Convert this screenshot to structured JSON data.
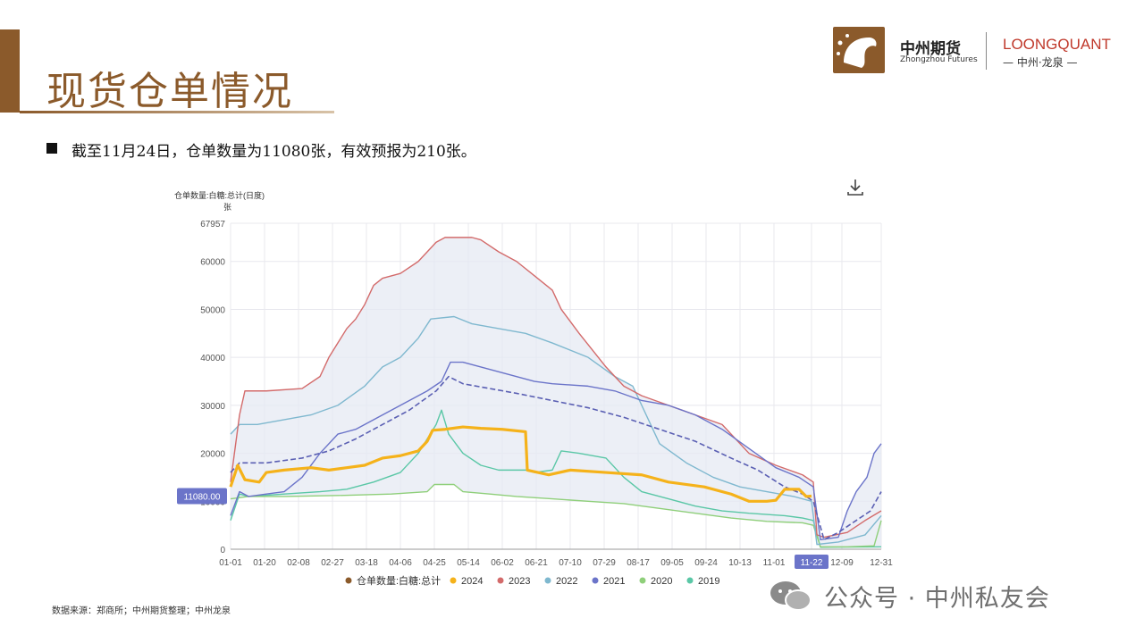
{
  "header": {
    "title": "现货仓单情况",
    "logo_cn": "中州期货",
    "logo_en": "Zhongzhou Futures",
    "logo_lq": "LOONGQUANT",
    "logo_lq_sub": "— 中州·龙泉 —",
    "accent_color": "#8b5a2b"
  },
  "summary": "截至11月24日，仓单数量为11080张，有效预报为210张。",
  "chart_data": {
    "type": "line",
    "title": "仓单数量:白糖:总计(日度)",
    "ylabel": "张",
    "ylim": [
      0,
      67957
    ],
    "y_ticks": [
      0,
      10000,
      20000,
      30000,
      40000,
      50000,
      60000,
      67957
    ],
    "x_ticks": [
      "01-01",
      "01-20",
      "02-08",
      "02-27",
      "03-18",
      "04-06",
      "04-25",
      "05-14",
      "06-02",
      "06-21",
      "07-10",
      "07-29",
      "08-17",
      "09-05",
      "09-24",
      "10-13",
      "11-01",
      "11-22",
      "12-09",
      "12-31"
    ],
    "x_tick_days": [
      0,
      19,
      38,
      57,
      76,
      95,
      114,
      133,
      152,
      171,
      190,
      209,
      228,
      247,
      266,
      285,
      304,
      325,
      342,
      364
    ],
    "highlight_x": "11-22",
    "current_value_label": "11080.00",
    "legend_position": "bottom",
    "grid": true,
    "band_color": "#e6eaf3",
    "series": [
      {
        "name": "仓单数量:白糖:总计",
        "color": "#8b5a2b",
        "style": "legend-only",
        "points": []
      },
      {
        "name": "2024",
        "color": "#f5b21a",
        "style": "solid-bold",
        "points": [
          [
            0,
            13000
          ],
          [
            4,
            17500
          ],
          [
            8,
            14500
          ],
          [
            16,
            14000
          ],
          [
            20,
            16000
          ],
          [
            30,
            16500
          ],
          [
            45,
            17000
          ],
          [
            55,
            16500
          ],
          [
            65,
            17000
          ],
          [
            75,
            17500
          ],
          [
            85,
            19000
          ],
          [
            95,
            19500
          ],
          [
            105,
            20500
          ],
          [
            110,
            22500
          ],
          [
            113,
            24800
          ],
          [
            120,
            25000
          ],
          [
            130,
            25500
          ],
          [
            140,
            25200
          ],
          [
            152,
            25000
          ],
          [
            165,
            24500
          ],
          [
            166,
            16500
          ],
          [
            172,
            16000
          ],
          [
            178,
            15500
          ],
          [
            190,
            16500
          ],
          [
            210,
            16000
          ],
          [
            230,
            15500
          ],
          [
            245,
            14000
          ],
          [
            265,
            13000
          ],
          [
            280,
            11500
          ],
          [
            290,
            10000
          ],
          [
            300,
            10000
          ],
          [
            305,
            10200
          ],
          [
            310,
            12500
          ],
          [
            318,
            12500
          ],
          [
            322,
            11000
          ],
          [
            325,
            11080
          ]
        ]
      },
      {
        "name": "2023",
        "color": "#d36b6b",
        "style": "solid",
        "points": [
          [
            0,
            14000
          ],
          [
            5,
            28000
          ],
          [
            8,
            33000
          ],
          [
            20,
            33000
          ],
          [
            40,
            33500
          ],
          [
            50,
            36000
          ],
          [
            55,
            40000
          ],
          [
            60,
            43000
          ],
          [
            65,
            46000
          ],
          [
            70,
            48000
          ],
          [
            75,
            51000
          ],
          [
            80,
            55000
          ],
          [
            85,
            56500
          ],
          [
            95,
            57500
          ],
          [
            105,
            60000
          ],
          [
            115,
            64000
          ],
          [
            120,
            65000
          ],
          [
            135,
            65000
          ],
          [
            140,
            64500
          ],
          [
            150,
            62000
          ],
          [
            160,
            60000
          ],
          [
            170,
            57000
          ],
          [
            180,
            54000
          ],
          [
            185,
            50000
          ],
          [
            195,
            45000
          ],
          [
            210,
            38000
          ],
          [
            220,
            34000
          ],
          [
            230,
            32000
          ],
          [
            245,
            30000
          ],
          [
            260,
            28000
          ],
          [
            275,
            26000
          ],
          [
            290,
            20000
          ],
          [
            305,
            17500
          ],
          [
            320,
            15500
          ],
          [
            326,
            14000
          ],
          [
            328,
            3000
          ],
          [
            332,
            2500
          ],
          [
            345,
            3500
          ],
          [
            355,
            6000
          ],
          [
            364,
            8000
          ]
        ]
      },
      {
        "name": "2022",
        "color": "#7fb8cf",
        "style": "solid",
        "points": [
          [
            0,
            24000
          ],
          [
            5,
            26000
          ],
          [
            15,
            26000
          ],
          [
            30,
            27000
          ],
          [
            45,
            28000
          ],
          [
            60,
            30000
          ],
          [
            75,
            34000
          ],
          [
            85,
            38000
          ],
          [
            95,
            40000
          ],
          [
            105,
            44000
          ],
          [
            112,
            48000
          ],
          [
            125,
            48500
          ],
          [
            135,
            47000
          ],
          [
            150,
            46000
          ],
          [
            165,
            45000
          ],
          [
            180,
            43000
          ],
          [
            200,
            40000
          ],
          [
            215,
            36000
          ],
          [
            225,
            34000
          ],
          [
            240,
            22000
          ],
          [
            255,
            18000
          ],
          [
            270,
            15000
          ],
          [
            285,
            13000
          ],
          [
            300,
            12000
          ],
          [
            315,
            11000
          ],
          [
            325,
            10000
          ],
          [
            328,
            1000
          ],
          [
            340,
            1500
          ],
          [
            355,
            3000
          ],
          [
            364,
            7000
          ]
        ]
      },
      {
        "name": "2021",
        "color": "#6b74c9",
        "style": "solid",
        "points": [
          [
            0,
            7000
          ],
          [
            5,
            12000
          ],
          [
            10,
            11000
          ],
          [
            20,
            11500
          ],
          [
            30,
            12000
          ],
          [
            40,
            15000
          ],
          [
            50,
            20000
          ],
          [
            60,
            24000
          ],
          [
            70,
            25000
          ],
          [
            80,
            27000
          ],
          [
            90,
            29000
          ],
          [
            100,
            31000
          ],
          [
            110,
            33000
          ],
          [
            118,
            35000
          ],
          [
            123,
            39000
          ],
          [
            130,
            39000
          ],
          [
            140,
            38000
          ],
          [
            150,
            37000
          ],
          [
            160,
            36000
          ],
          [
            170,
            35000
          ],
          [
            180,
            34500
          ],
          [
            200,
            34000
          ],
          [
            215,
            33000
          ],
          [
            230,
            31000
          ],
          [
            245,
            30000
          ],
          [
            260,
            28000
          ],
          [
            275,
            25000
          ],
          [
            290,
            21000
          ],
          [
            305,
            17000
          ],
          [
            318,
            15000
          ],
          [
            326,
            13000
          ],
          [
            330,
            2000
          ],
          [
            340,
            2500
          ],
          [
            345,
            8000
          ],
          [
            350,
            12000
          ],
          [
            356,
            15000
          ],
          [
            360,
            20000
          ],
          [
            364,
            22000
          ]
        ]
      },
      {
        "name": "2021-avg",
        "color": "#5a5fb3",
        "style": "dashed",
        "points": [
          [
            0,
            16000
          ],
          [
            5,
            18000
          ],
          [
            20,
            18000
          ],
          [
            40,
            19000
          ],
          [
            55,
            20500
          ],
          [
            70,
            23000
          ],
          [
            85,
            26000
          ],
          [
            100,
            29000
          ],
          [
            115,
            33000
          ],
          [
            122,
            36000
          ],
          [
            130,
            34500
          ],
          [
            145,
            33500
          ],
          [
            160,
            32500
          ],
          [
            180,
            31000
          ],
          [
            200,
            29500
          ],
          [
            220,
            27500
          ],
          [
            240,
            25000
          ],
          [
            260,
            22500
          ],
          [
            280,
            19000
          ],
          [
            295,
            16500
          ],
          [
            310,
            13000
          ],
          [
            320,
            11500
          ],
          [
            326,
            10000
          ],
          [
            332,
            2000
          ],
          [
            340,
            3500
          ],
          [
            350,
            6000
          ],
          [
            358,
            8000
          ],
          [
            364,
            12000
          ]
        ]
      },
      {
        "name": "2020",
        "color": "#8fcf7a",
        "style": "solid",
        "points": [
          [
            0,
            10500
          ],
          [
            10,
            11000
          ],
          [
            30,
            11000
          ],
          [
            60,
            11200
          ],
          [
            90,
            11500
          ],
          [
            110,
            12000
          ],
          [
            114,
            13500
          ],
          [
            125,
            13500
          ],
          [
            130,
            12000
          ],
          [
            145,
            11500
          ],
          [
            160,
            11000
          ],
          [
            180,
            10500
          ],
          [
            200,
            10000
          ],
          [
            220,
            9500
          ],
          [
            240,
            8500
          ],
          [
            260,
            7500
          ],
          [
            280,
            6500
          ],
          [
            300,
            5800
          ],
          [
            320,
            5500
          ],
          [
            326,
            5000
          ],
          [
            330,
            500
          ],
          [
            345,
            500
          ],
          [
            360,
            700
          ],
          [
            364,
            6000
          ]
        ]
      },
      {
        "name": "2019",
        "color": "#5ac7a6",
        "style": "solid",
        "points": [
          [
            0,
            6000
          ],
          [
            5,
            11500
          ],
          [
            10,
            11000
          ],
          [
            30,
            11500
          ],
          [
            50,
            12000
          ],
          [
            65,
            12500
          ],
          [
            80,
            14000
          ],
          [
            95,
            16000
          ],
          [
            105,
            20000
          ],
          [
            115,
            26000
          ],
          [
            118,
            29000
          ],
          [
            122,
            24000
          ],
          [
            130,
            20000
          ],
          [
            140,
            17500
          ],
          [
            150,
            16500
          ],
          [
            160,
            16500
          ],
          [
            165,
            16500
          ],
          [
            170,
            16000
          ],
          [
            180,
            16500
          ],
          [
            185,
            20500
          ],
          [
            195,
            20000
          ],
          [
            210,
            19000
          ],
          [
            220,
            15000
          ],
          [
            230,
            12000
          ],
          [
            245,
            10500
          ],
          [
            260,
            9000
          ],
          [
            275,
            8000
          ],
          [
            290,
            7500
          ],
          [
            310,
            7000
          ],
          [
            320,
            6500
          ],
          [
            326,
            6000
          ],
          [
            330,
            400
          ],
          [
            364,
            500
          ]
        ]
      }
    ],
    "legend": [
      {
        "name": "仓单数量:白糖:总计",
        "color": "#8b5a2b"
      },
      {
        "name": "2024",
        "color": "#f5b21a"
      },
      {
        "name": "2023",
        "color": "#d36b6b"
      },
      {
        "name": "2022",
        "color": "#7fb8cf"
      },
      {
        "name": "2021",
        "color": "#6b74c9"
      },
      {
        "name": "2020",
        "color": "#8fcf7a"
      },
      {
        "name": "2019",
        "color": "#5ac7a6"
      }
    ]
  },
  "footer": {
    "source": "数据来源：郑商所；中州期货整理；中州龙泉",
    "wechat": "公众号 · 中州私友会"
  }
}
